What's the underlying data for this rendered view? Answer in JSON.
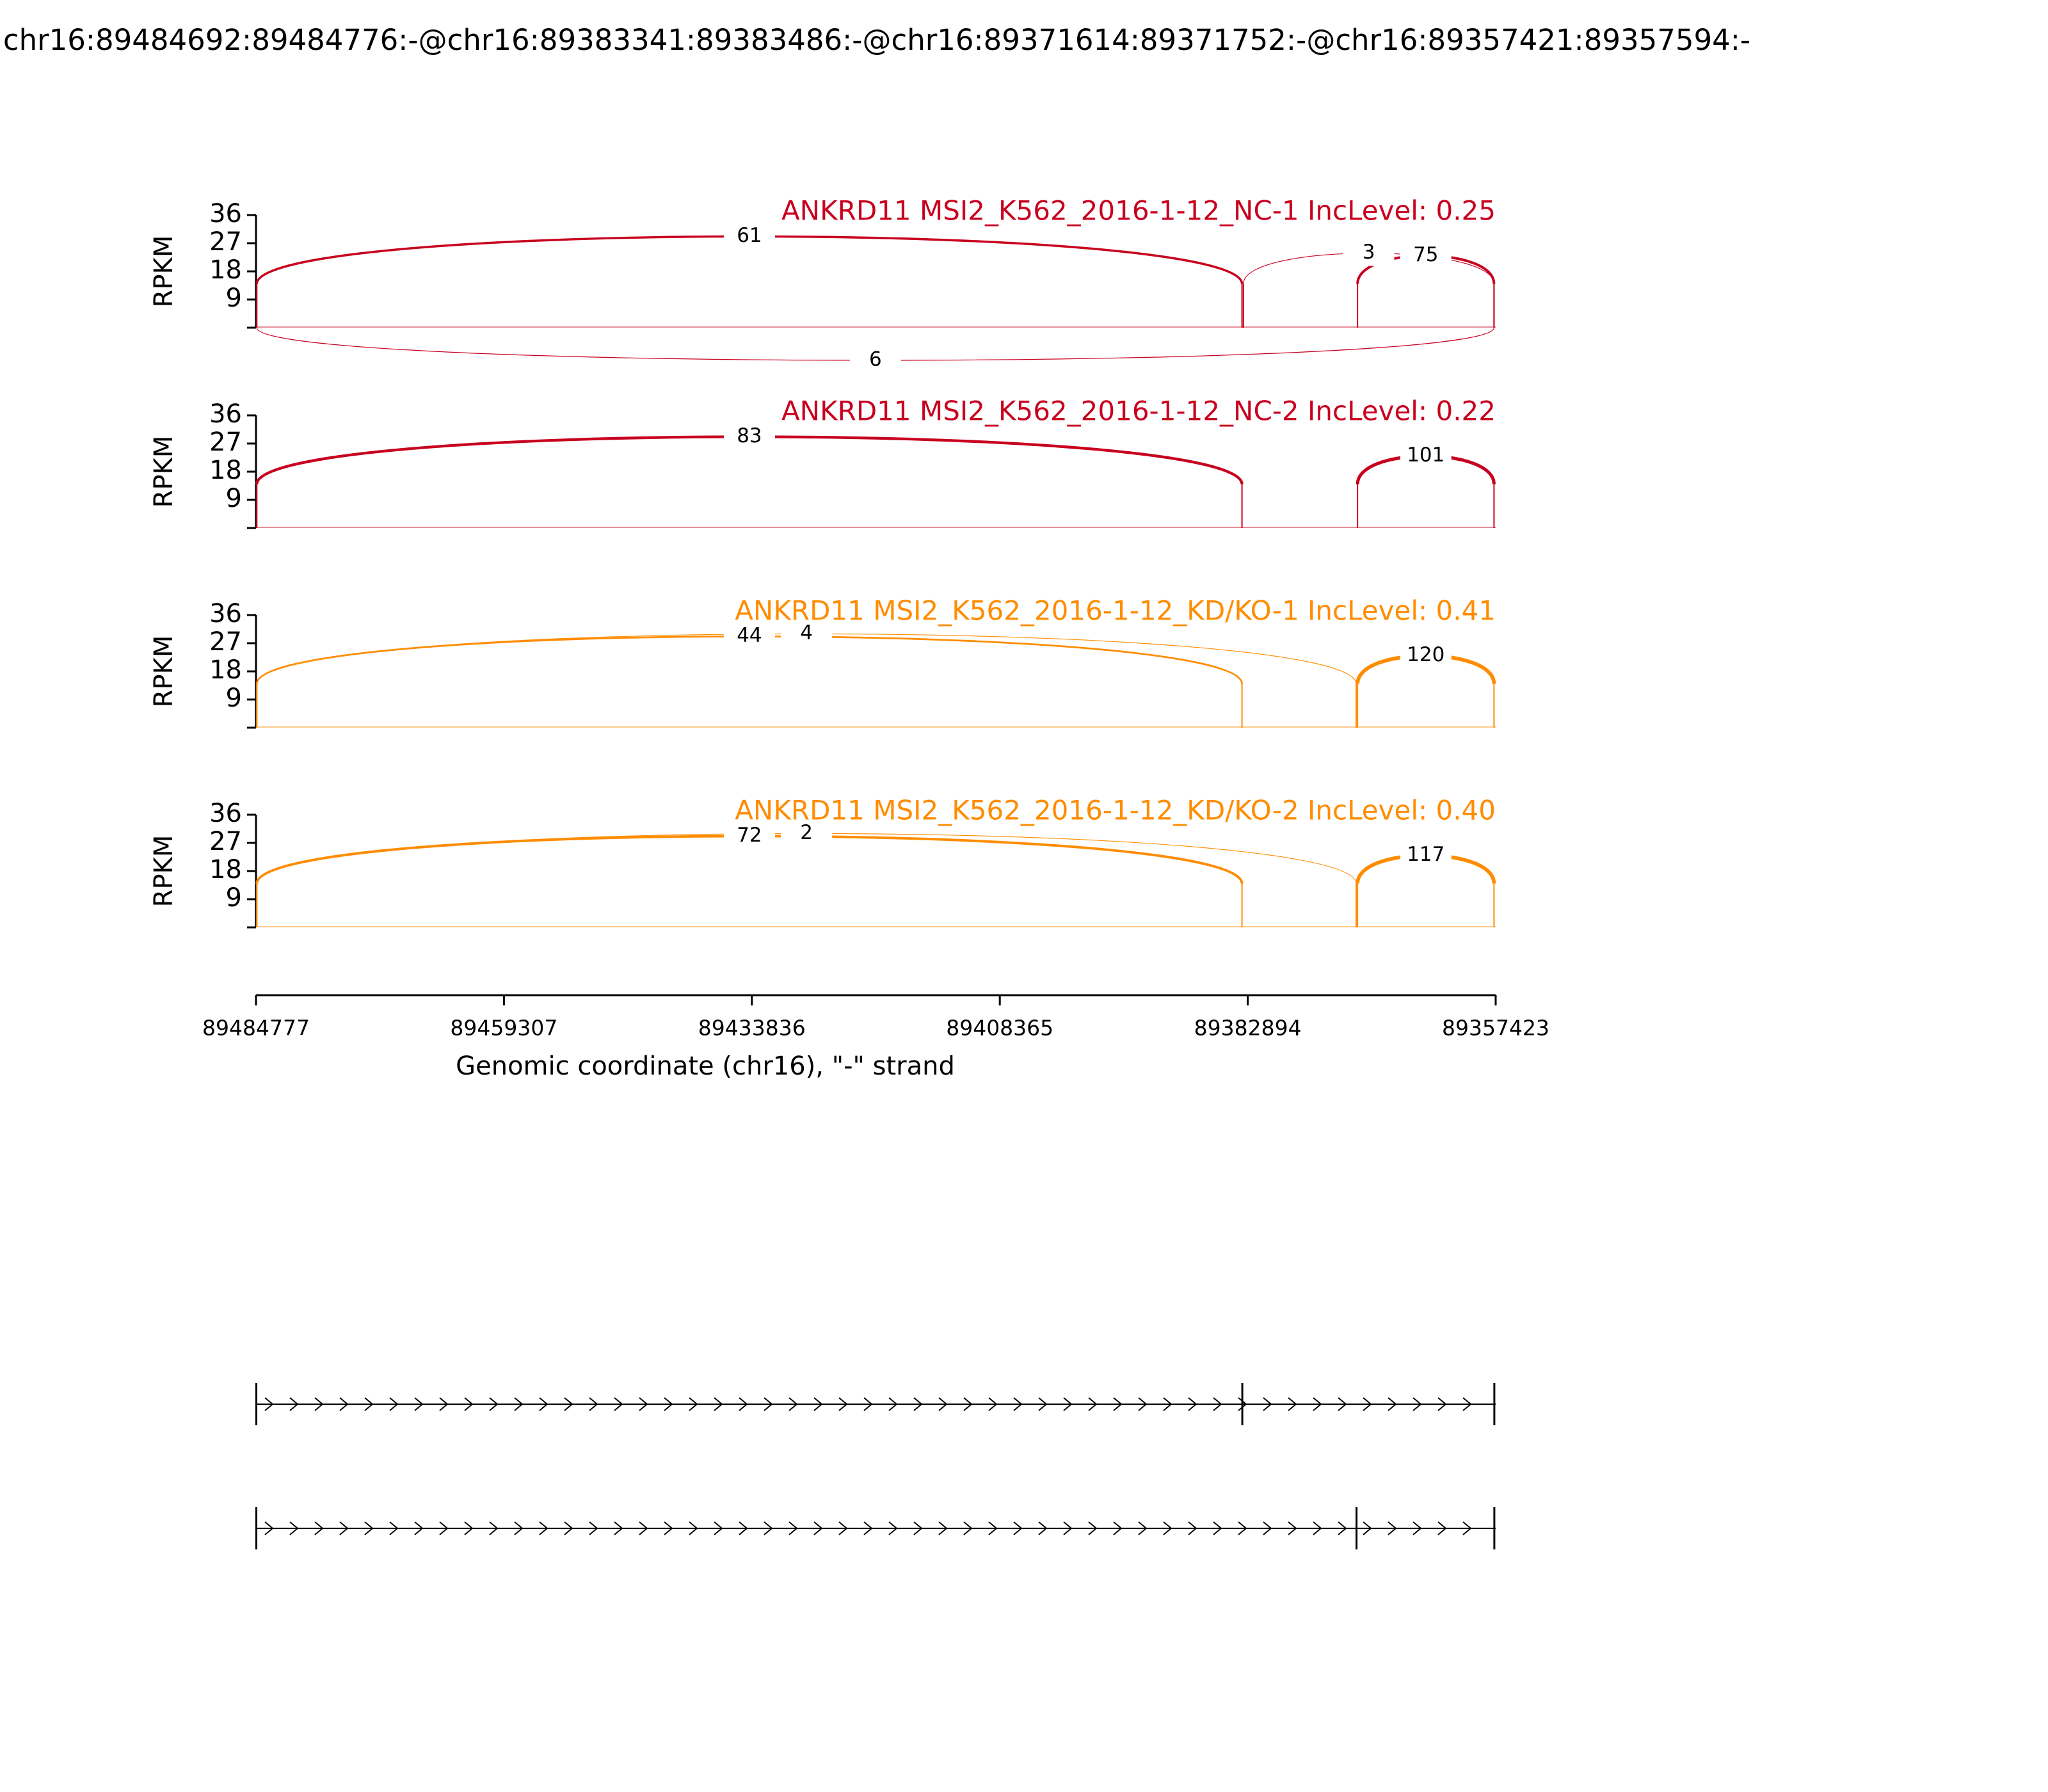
{
  "title": "chr16:89484692:89484776:-@chr16:89383341:89383486:-@chr16:89371614:89371752:-@chr16:89357421:89357594:-",
  "chart_data": [
    {
      "type": "sashimi",
      "title": "ANKRD11 MSI2_K562_2016-1-12_NC-1 IncLevel: 0.25",
      "color": "#c8001e",
      "ylabel": "RPKM",
      "ylim": [
        0,
        36
      ],
      "yticks": [
        9,
        18,
        27,
        36
      ],
      "junctions": [
        {
          "start": 89484692,
          "end": 89383486,
          "count": 61,
          "side": "above"
        },
        {
          "start": 89383341,
          "end": 89357594,
          "count": 3,
          "side": "above"
        },
        {
          "start": 89371614,
          "end": 89357594,
          "count": 75,
          "side": "above"
        },
        {
          "start": 89484692,
          "end": 89357594,
          "count": 6,
          "side": "below"
        }
      ]
    },
    {
      "type": "sashimi",
      "title": "ANKRD11 MSI2_K562_2016-1-12_NC-2 IncLevel: 0.22",
      "color": "#c8001e",
      "ylabel": "RPKM",
      "ylim": [
        0,
        36
      ],
      "yticks": [
        9,
        18,
        27,
        36
      ],
      "junctions": [
        {
          "start": 89484692,
          "end": 89383486,
          "count": 83,
          "side": "above"
        },
        {
          "start": 89371614,
          "end": 89357594,
          "count": 101,
          "side": "above"
        }
      ]
    },
    {
      "type": "sashimi",
      "title": "ANKRD11 MSI2_K562_2016-1-12_KD/KO-1 IncLevel: 0.41",
      "color": "#ff8c00",
      "ylabel": "RPKM",
      "ylim": [
        0,
        36
      ],
      "yticks": [
        9,
        18,
        27,
        36
      ],
      "junctions": [
        {
          "start": 89484692,
          "end": 89371752,
          "count": 4,
          "side": "above"
        },
        {
          "start": 89484692,
          "end": 89383486,
          "count": 44,
          "side": "above"
        },
        {
          "start": 89371614,
          "end": 89357594,
          "count": 120,
          "side": "above"
        }
      ]
    },
    {
      "type": "sashimi",
      "title": "ANKRD11 MSI2_K562_2016-1-12_KD/KO-2 IncLevel: 0.40",
      "color": "#ff8c00",
      "ylabel": "RPKM",
      "ylim": [
        0,
        36
      ],
      "yticks": [
        9,
        18,
        27,
        36
      ],
      "junctions": [
        {
          "start": 89484692,
          "end": 89371752,
          "count": 2,
          "side": "above"
        },
        {
          "start": 89484692,
          "end": 89383486,
          "count": 72,
          "side": "above"
        },
        {
          "start": 89371614,
          "end": 89357594,
          "count": 117,
          "side": "above"
        }
      ]
    }
  ],
  "x_axis": {
    "label": "Genomic coordinate (chr16), \"-\" strand",
    "xlim": [
      89484777,
      89357423
    ],
    "xticks": [
      89484777,
      89459307,
      89433836,
      89408365,
      89382894,
      89357423
    ]
  },
  "isoforms": [
    {
      "exons": [
        [
          89484692,
          89484776
        ],
        [
          89383341,
          89383486
        ],
        [
          89357421,
          89357594
        ]
      ]
    },
    {
      "exons": [
        [
          89484692,
          89484776
        ],
        [
          89371614,
          89371752
        ],
        [
          89357421,
          89357594
        ]
      ]
    }
  ]
}
